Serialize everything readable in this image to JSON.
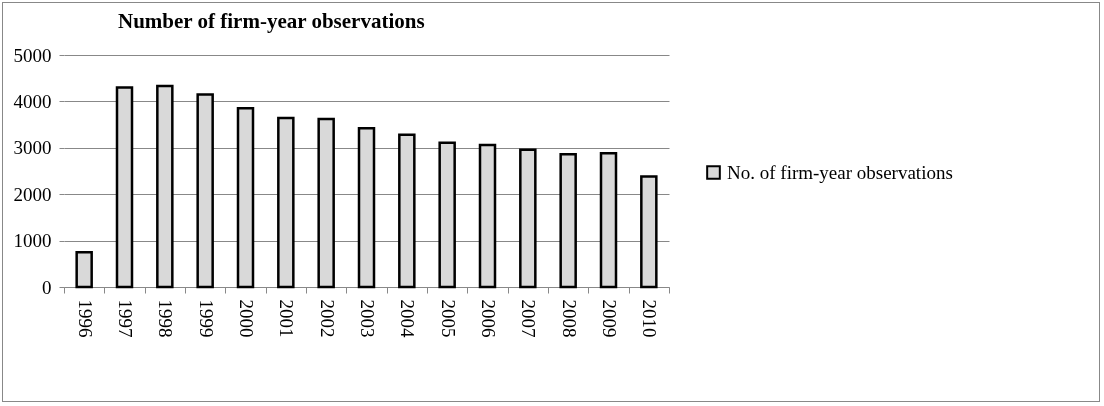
{
  "chart_data": {
    "type": "bar",
    "title": "Number of firm-year observations",
    "categories": [
      "1996",
      "1997",
      "1998",
      "1999",
      "2000",
      "2001",
      "2002",
      "2003",
      "2004",
      "2005",
      "2006",
      "2007",
      "2008",
      "2009",
      "2010"
    ],
    "series": [
      {
        "name": "No. of firm-year observations",
        "color": "#d9d9d9",
        "values": [
          750,
          4300,
          4330,
          4150,
          3850,
          3640,
          3620,
          3420,
          3280,
          3110,
          3060,
          2960,
          2860,
          2880,
          2380
        ]
      }
    ],
    "ylim": [
      0,
      5000
    ],
    "yticks": [
      0,
      1000,
      2000,
      3000,
      4000,
      5000
    ],
    "grid": "y",
    "legend": "right"
  }
}
